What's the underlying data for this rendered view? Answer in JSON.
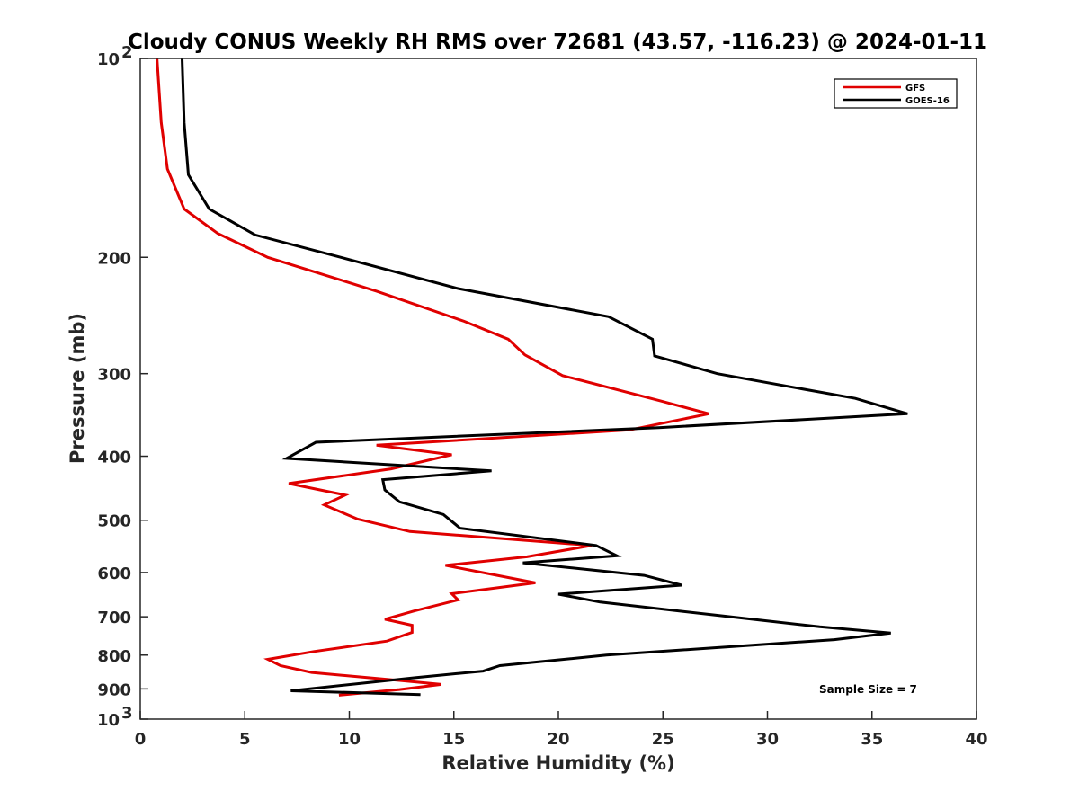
{
  "chart_data": {
    "type": "line",
    "title": "Cloudy CONUS Weekly RH RMS over 72681 (43.57, -116.23) @ 2024-01-11",
    "xlabel": "Relative Humidity (%)",
    "ylabel": "Pressure (mb)",
    "xlim": [
      0,
      40
    ],
    "ylim": [
      100,
      1000
    ],
    "y_scale": "log",
    "y_reversed": true,
    "grid": false,
    "legend_position": "top-right",
    "x_ticks": [
      {
        "value": 0,
        "label": "0"
      },
      {
        "value": 5,
        "label": "5"
      },
      {
        "value": 10,
        "label": "10"
      },
      {
        "value": 15,
        "label": "15"
      },
      {
        "value": 20,
        "label": "20"
      },
      {
        "value": 25,
        "label": "25"
      },
      {
        "value": 30,
        "label": "30"
      },
      {
        "value": 35,
        "label": "35"
      },
      {
        "value": 40,
        "label": "40"
      }
    ],
    "y_ticks": [
      {
        "value": 100,
        "base": "10",
        "exp": "2"
      },
      {
        "value": 200,
        "label": "200"
      },
      {
        "value": 300,
        "label": "300"
      },
      {
        "value": 400,
        "label": "400"
      },
      {
        "value": 500,
        "label": "500"
      },
      {
        "value": 600,
        "label": "600"
      },
      {
        "value": 700,
        "label": "700"
      },
      {
        "value": 800,
        "label": "800"
      },
      {
        "value": 900,
        "label": "900"
      },
      {
        "value": 1000,
        "base": "10",
        "exp": "3"
      }
    ],
    "series": [
      {
        "name": "GFS",
        "color": "#e00000",
        "points": [
          [
            0.8,
            100
          ],
          [
            1.0,
            125
          ],
          [
            1.3,
            147
          ],
          [
            2.1,
            169
          ],
          [
            3.7,
            184
          ],
          [
            6.1,
            200
          ],
          [
            11.3,
            225
          ],
          [
            15.5,
            250
          ],
          [
            17.6,
            266
          ],
          [
            18.4,
            281
          ],
          [
            20.2,
            302
          ],
          [
            24.9,
            330
          ],
          [
            27.2,
            345
          ],
          [
            23.4,
            365
          ],
          [
            11.3,
            385
          ],
          [
            14.9,
            398
          ],
          [
            12.0,
            418
          ],
          [
            7.1,
            440
          ],
          [
            9.8,
            458
          ],
          [
            8.8,
            474
          ],
          [
            10.4,
            498
          ],
          [
            12.9,
            520
          ],
          [
            21.6,
            546
          ],
          [
            18.5,
            568
          ],
          [
            14.6,
            585
          ],
          [
            18.9,
            622
          ],
          [
            14.9,
            646
          ],
          [
            15.2,
            660
          ],
          [
            13.1,
            686
          ],
          [
            11.7,
            706
          ],
          [
            13.0,
            721
          ],
          [
            13.0,
            739
          ],
          [
            11.8,
            762
          ],
          [
            8.3,
            790
          ],
          [
            6.1,
            812
          ],
          [
            6.7,
            830
          ],
          [
            8.2,
            850
          ],
          [
            12.4,
            874
          ],
          [
            14.4,
            886
          ],
          [
            12.4,
            902
          ],
          [
            9.5,
            920
          ]
        ]
      },
      {
        "name": "GOES-16",
        "color": "#000000",
        "points": [
          [
            2.0,
            100
          ],
          [
            2.1,
            125
          ],
          [
            2.3,
            150
          ],
          [
            3.3,
            169
          ],
          [
            5.5,
            185
          ],
          [
            9.6,
            200
          ],
          [
            15.2,
            223
          ],
          [
            22.4,
            246
          ],
          [
            24.5,
            266
          ],
          [
            24.6,
            282
          ],
          [
            27.6,
            300
          ],
          [
            34.2,
            327
          ],
          [
            36.7,
            345
          ],
          [
            24.8,
            362
          ],
          [
            8.4,
            381
          ],
          [
            7.0,
            403
          ],
          [
            16.8,
            421
          ],
          [
            11.6,
            434
          ],
          [
            11.7,
            450
          ],
          [
            12.4,
            469
          ],
          [
            14.5,
            490
          ],
          [
            15.3,
            514
          ],
          [
            21.8,
            546
          ],
          [
            22.8,
            566
          ],
          [
            18.3,
            580
          ],
          [
            24.1,
            606
          ],
          [
            25.9,
            627
          ],
          [
            20.0,
            647
          ],
          [
            22.0,
            665
          ],
          [
            27.5,
            696
          ],
          [
            32.5,
            725
          ],
          [
            35.9,
            741
          ],
          [
            33.2,
            758
          ],
          [
            22.3,
            800
          ],
          [
            17.2,
            830
          ],
          [
            16.4,
            846
          ],
          [
            13.2,
            865
          ],
          [
            7.2,
            906
          ],
          [
            13.4,
            918
          ]
        ]
      }
    ],
    "annotations": [
      {
        "text": "Sample Size = 7"
      }
    ]
  }
}
